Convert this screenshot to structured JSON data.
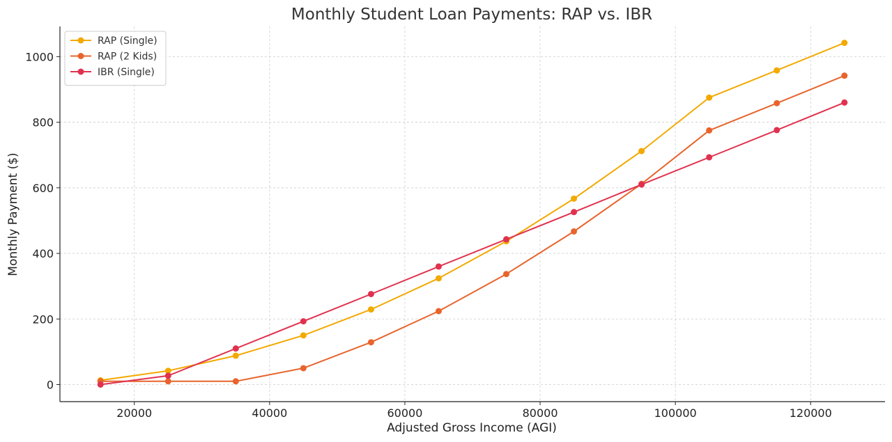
{
  "chart_data": {
    "type": "line",
    "title": "Monthly Student Loan Payments: RAP vs. IBR",
    "xlabel": "Adjusted Gross Income (AGI)",
    "ylabel": "Monthly Payment ($)",
    "x": [
      15000,
      25000,
      35000,
      45000,
      55000,
      65000,
      75000,
      85000,
      95000,
      105000,
      115000,
      125000
    ],
    "x_ticks": [
      20000,
      40000,
      60000,
      80000,
      100000,
      120000
    ],
    "y_ticks": [
      0,
      200,
      400,
      600,
      800,
      1000
    ],
    "xlim": [
      9000,
      131000
    ],
    "ylim": [
      -52,
      1092
    ],
    "grid": true,
    "legend_position": "top-left",
    "series": [
      {
        "name": "RAP (Single)",
        "color": "#f2a900",
        "values": [
          13,
          42,
          88,
          150,
          229,
          324,
          437,
          567,
          712,
          875,
          958,
          1042
        ]
      },
      {
        "name": "RAP (2 Kids)",
        "color": "#e8642c",
        "values": [
          10,
          10,
          10,
          50,
          129,
          224,
          337,
          467,
          612,
          775,
          858,
          942
        ]
      },
      {
        "name": "IBR (Single)",
        "color": "#e0324f",
        "values": [
          0,
          27,
          110,
          193,
          276,
          360,
          443,
          526,
          610,
          693,
          776,
          860
        ]
      }
    ]
  }
}
